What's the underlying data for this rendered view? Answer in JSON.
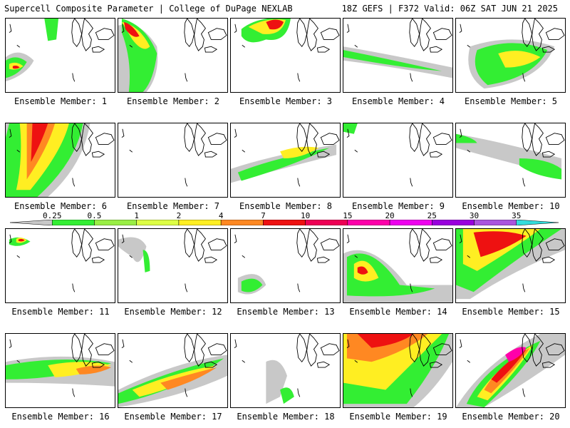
{
  "header": {
    "left_title": "Supercell Composite Parameter | College of DuPage NEXLAB",
    "right_title": "18Z GEFS | F372 Valid: 06Z SAT JUN 21 2025"
  },
  "panels": [
    {
      "label": "Ensemble Member: 1"
    },
    {
      "label": "Ensemble Member: 2"
    },
    {
      "label": "Ensemble Member: 3"
    },
    {
      "label": "Ensemble Member: 4"
    },
    {
      "label": "Ensemble Member: 5"
    },
    {
      "label": "Ensemble Member: 6"
    },
    {
      "label": "Ensemble Member: 7"
    },
    {
      "label": "Ensemble Member: 8"
    },
    {
      "label": "Ensemble Member: 9"
    },
    {
      "label": "Ensemble Member: 10"
    },
    {
      "label": "Ensemble Member: 11"
    },
    {
      "label": "Ensemble Member: 12"
    },
    {
      "label": "Ensemble Member: 13"
    },
    {
      "label": "Ensemble Member: 14"
    },
    {
      "label": "Ensemble Member: 15"
    },
    {
      "label": "Ensemble Member: 16"
    },
    {
      "label": "Ensemble Member: 17"
    },
    {
      "label": "Ensemble Member: 18"
    },
    {
      "label": "Ensemble Member: 19"
    },
    {
      "label": "Ensemble Member: 20"
    }
  ],
  "colorbar": {
    "labels": [
      "0.25",
      "0.5",
      "1",
      "2",
      "4",
      "7",
      "10",
      "15",
      "20",
      "25",
      "30",
      "35"
    ],
    "colors": [
      "#c8c8c8",
      "#33ee33",
      "#99ee44",
      "#ddff44",
      "#ffee22",
      "#ff8822",
      "#ee1111",
      "#ee0055",
      "#ff00aa",
      "#ee00ee",
      "#9900dd",
      "#aa55dd",
      "#33dddd"
    ]
  }
}
